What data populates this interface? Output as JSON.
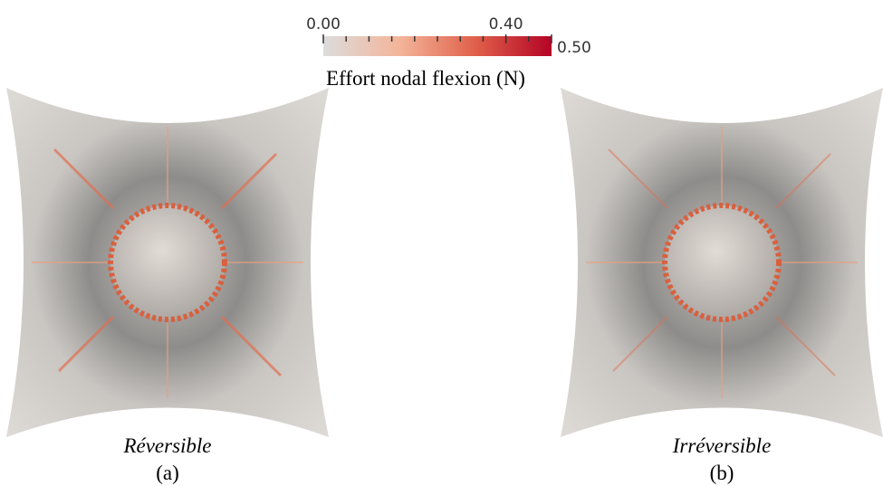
{
  "colorbar": {
    "title": "Effort nodal flexion (N)",
    "range": [
      0,
      0.5
    ],
    "ticks": [
      {
        "value": 0,
        "label": "0.00"
      },
      {
        "value": 0.4,
        "label": "0.40"
      },
      {
        "value": 0.5,
        "label": "0.50"
      }
    ],
    "minor_ticks": [
      0.05,
      0.1,
      0.15,
      0.2,
      0.25,
      0.3,
      0.35,
      0.45
    ],
    "colormap": [
      "#dcdcdc",
      "#f3b59a",
      "#e0604a",
      "#b40426"
    ]
  },
  "panels": [
    {
      "caption": "Réversible",
      "label": "(a)"
    },
    {
      "caption": "Irréversible",
      "label": "(b)"
    }
  ]
}
